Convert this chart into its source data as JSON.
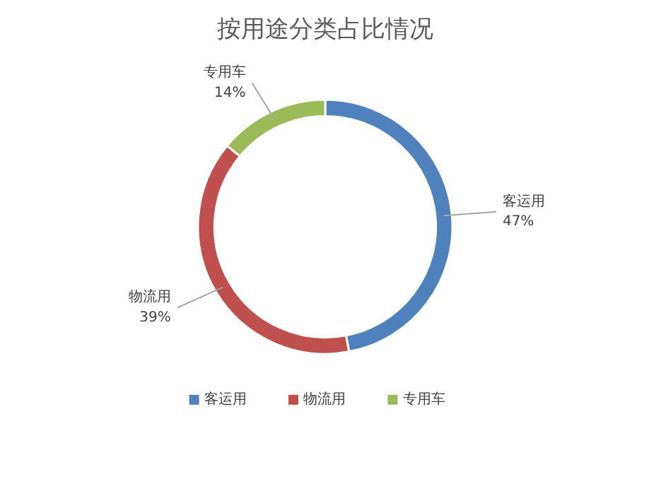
{
  "chart_data": {
    "type": "donut",
    "title": "按用途分类占比情况",
    "categories": [
      "客运用",
      "物流用",
      "专用车"
    ],
    "values": [
      47,
      39,
      14
    ],
    "value_labels": [
      "47%",
      "39%",
      "14%"
    ],
    "colors": [
      "#4f81bd",
      "#c0504d",
      "#9bbb59"
    ],
    "legend": "bottom"
  }
}
